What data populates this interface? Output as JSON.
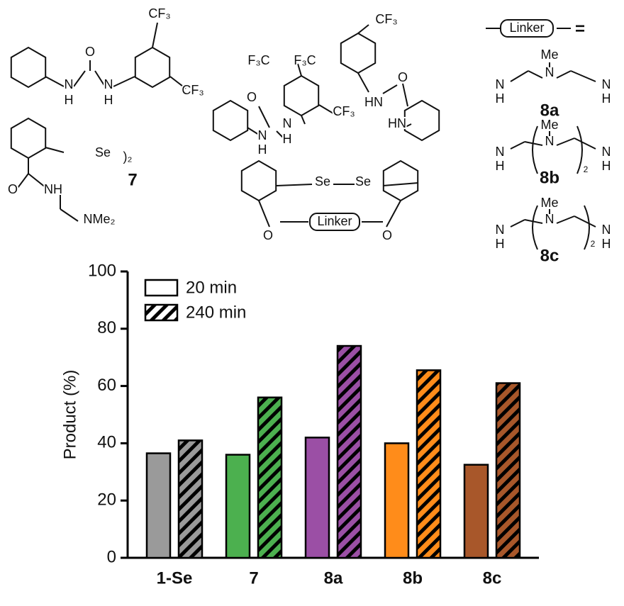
{
  "chart_data": {
    "type": "bar",
    "y_label": "Product (%)",
    "categories": [
      "1-Se",
      "7",
      "8a",
      "8b",
      "8c"
    ],
    "category_colors": [
      "#9a9a9a",
      "#4cb04f",
      "#9b4fa5",
      "#ff8c1a",
      "#a8572a"
    ],
    "series": [
      {
        "name": "20 min",
        "hatch": false,
        "values": [
          36.5,
          36,
          42,
          40,
          32.5
        ]
      },
      {
        "name": "240 min",
        "hatch": true,
        "values": [
          41,
          56,
          74,
          65.5,
          61
        ]
      }
    ],
    "ylim": [
      0,
      100
    ],
    "yticks": [
      0,
      20,
      40,
      60,
      80,
      100
    ],
    "grid": false,
    "legend": "top-left"
  },
  "structures": {
    "labels": [
      "CF₃",
      "O",
      "N",
      "H",
      "N",
      "H",
      "CF₃",
      "Se",
      ")₂",
      "7",
      "O",
      "NH",
      "NMe₂",
      "CF₃",
      "F₃C",
      "F₃C",
      "O",
      "HN",
      "HN",
      "O",
      "N",
      "H",
      "N",
      "H",
      "CF₃",
      "Se",
      "Se",
      "O",
      "Linker",
      "O",
      "Linker",
      "=",
      "Me",
      "N",
      "N",
      "H",
      "N",
      "H",
      "8a",
      "Me",
      "N",
      "N",
      "H",
      "N",
      "H",
      "2",
      "8b",
      "Me",
      "N",
      "N",
      "H",
      "N",
      "H",
      "2",
      "8c"
    ]
  }
}
